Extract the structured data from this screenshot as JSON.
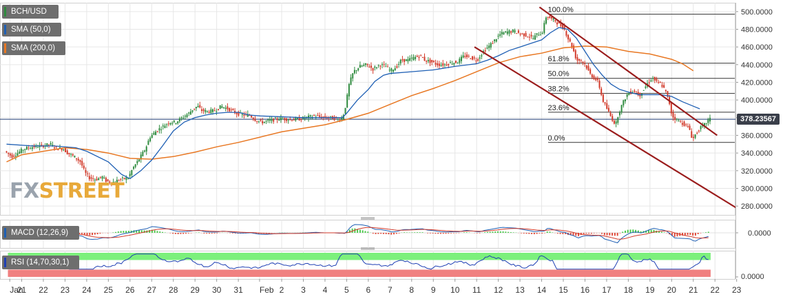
{
  "legend": {
    "pair": "BCH/USD",
    "sma50": "SMA (50,0)",
    "sma200": "SMA (200,0)"
  },
  "watermark": {
    "part1": "FX",
    "part2": "STREET"
  },
  "colors": {
    "candle_up": "#2e8b3e",
    "candle_down": "#d23a2a",
    "sma50": "#1e5fb4",
    "sma200": "#e87722",
    "channel": "#9b1d1d",
    "macd_line": "#1e5fb4",
    "macd_signal": "#d23a2a",
    "rsi_line": "#1e3fb4",
    "rsi_overbought": "#7cf07c",
    "rsi_oversold": "#f08080",
    "price_tag_bg": "#3a3f4a",
    "grid": "#e6e6e6"
  },
  "chart_data": {
    "type": "candlestick",
    "pair": "BCH/USD",
    "price_axis": {
      "ylim": [
        270,
        510
      ],
      "ticks": [
        500,
        480,
        460,
        440,
        420,
        400,
        380,
        360,
        340,
        320,
        300,
        280
      ],
      "tick_labels": [
        "500.0000",
        "480.0000",
        "460.0000",
        "440.0000",
        "420.0000",
        "400.0000",
        "380.0000",
        "360.0000",
        "340.0000",
        "320.0000",
        "300.0000",
        "280.0000"
      ]
    },
    "time_axis": {
      "labels": [
        "Jan",
        "21",
        "22",
        "23",
        "24",
        "25",
        "26",
        "27",
        "28",
        "29",
        "30",
        "31",
        "Feb",
        "2",
        "3",
        "4",
        "5",
        "6",
        "7",
        "8",
        "9",
        "10",
        "11",
        "12",
        "13",
        "14",
        "15",
        "16",
        "17",
        "18",
        "19",
        "20",
        "21",
        "22",
        "23"
      ],
      "day_index": [
        -0.55,
        0,
        1,
        2,
        3,
        4,
        5,
        6,
        7,
        8,
        9,
        10,
        10.98,
        12,
        13,
        14,
        15,
        16,
        17,
        18,
        19,
        20,
        21,
        22,
        23,
        24,
        25,
        26,
        27,
        28,
        29,
        30,
        31,
        32,
        33
      ]
    },
    "current_price": "378.23567",
    "current_price_value": 378.23567,
    "fibonacci": {
      "high": 497,
      "low": 352,
      "levels": [
        {
          "label": "100.0%",
          "price": 497
        },
        {
          "label": "61.8%",
          "price": 441.6
        },
        {
          "label": "50.0%",
          "price": 424.5
        },
        {
          "label": "38.2%",
          "price": 407.4
        },
        {
          "label": "23.6%",
          "price": 386.2
        },
        {
          "label": "0.0%",
          "price": 352
        }
      ]
    },
    "channel": {
      "upper": [
        [
          23.9,
          505
        ],
        [
          32.1,
          360
        ]
      ],
      "lower": [
        [
          20.9,
          460
        ],
        [
          33.05,
          277
        ]
      ]
    },
    "price_path": [
      [
        -0.7,
        342
      ],
      [
        -0.35,
        336
      ],
      [
        0.2,
        345
      ],
      [
        0.6,
        347
      ],
      [
        1.0,
        348
      ],
      [
        1.4,
        350
      ],
      [
        1.7,
        345
      ],
      [
        2.0,
        345
      ],
      [
        2.2,
        340
      ],
      [
        2.5,
        336
      ],
      [
        2.8,
        330
      ],
      [
        3.0,
        318
      ],
      [
        3.2,
        312
      ],
      [
        3.5,
        310
      ],
      [
        3.8,
        313
      ],
      [
        4.0,
        308
      ],
      [
        4.3,
        307
      ],
      [
        4.6,
        310
      ],
      [
        5.0,
        312
      ],
      [
        5.2,
        322
      ],
      [
        5.5,
        333
      ],
      [
        5.8,
        345
      ],
      [
        6.0,
        358
      ],
      [
        6.3,
        365
      ],
      [
        6.6,
        370
      ],
      [
        6.9,
        375
      ],
      [
        7.2,
        375
      ],
      [
        7.5,
        380
      ],
      [
        7.8,
        385
      ],
      [
        8.0,
        390
      ],
      [
        8.2,
        393
      ],
      [
        8.4,
        388
      ],
      [
        8.7,
        387
      ],
      [
        9.0,
        388
      ],
      [
        9.3,
        393
      ],
      [
        9.6,
        390
      ],
      [
        10.0,
        385
      ],
      [
        10.3,
        383
      ],
      [
        10.6,
        383
      ],
      [
        10.9,
        377
      ],
      [
        11.2,
        375
      ],
      [
        11.6,
        377
      ],
      [
        12.0,
        379
      ],
      [
        12.4,
        378
      ],
      [
        12.8,
        378
      ],
      [
        13.2,
        380
      ],
      [
        13.6,
        382
      ],
      [
        14.0,
        380
      ],
      [
        14.4,
        380
      ],
      [
        14.7,
        378
      ],
      [
        14.9,
        380
      ],
      [
        15.05,
        395
      ],
      [
        15.2,
        418
      ],
      [
        15.4,
        432
      ],
      [
        15.7,
        438
      ],
      [
        16.0,
        440
      ],
      [
        16.3,
        435
      ],
      [
        16.6,
        440
      ],
      [
        16.9,
        438
      ],
      [
        17.1,
        433
      ],
      [
        17.4,
        438
      ],
      [
        17.6,
        445
      ],
      [
        17.9,
        445
      ],
      [
        18.2,
        448
      ],
      [
        18.5,
        450
      ],
      [
        18.7,
        445
      ],
      [
        19.0,
        443
      ],
      [
        19.3,
        440
      ],
      [
        19.6,
        440
      ],
      [
        19.9,
        442
      ],
      [
        20.2,
        443
      ],
      [
        20.5,
        450
      ],
      [
        20.8,
        448
      ],
      [
        21.1,
        445
      ],
      [
        21.4,
        455
      ],
      [
        21.7,
        462
      ],
      [
        22.0,
        470
      ],
      [
        22.2,
        475
      ],
      [
        22.5,
        477
      ],
      [
        22.8,
        478
      ],
      [
        23.1,
        475
      ],
      [
        23.4,
        473
      ],
      [
        23.7,
        470
      ],
      [
        23.9,
        475
      ],
      [
        24.1,
        475
      ],
      [
        24.3,
        495
      ],
      [
        24.5,
        492
      ],
      [
        24.7,
        490
      ],
      [
        24.9,
        485
      ],
      [
        25.1,
        482
      ],
      [
        25.3,
        470
      ],
      [
        25.5,
        460
      ],
      [
        25.7,
        445
      ],
      [
        25.9,
        445
      ],
      [
        26.1,
        440
      ],
      [
        26.3,
        430
      ],
      [
        26.5,
        425
      ],
      [
        26.7,
        420
      ],
      [
        26.9,
        400
      ],
      [
        27.1,
        390
      ],
      [
        27.3,
        380
      ],
      [
        27.5,
        372
      ],
      [
        27.6,
        382
      ],
      [
        27.8,
        395
      ],
      [
        28.0,
        405
      ],
      [
        28.2,
        410
      ],
      [
        28.4,
        410
      ],
      [
        28.6,
        405
      ],
      [
        28.8,
        412
      ],
      [
        29.0,
        420
      ],
      [
        29.2,
        425
      ],
      [
        29.4,
        420
      ],
      [
        29.6,
        418
      ],
      [
        29.8,
        410
      ],
      [
        30.0,
        395
      ],
      [
        30.1,
        382
      ],
      [
        30.3,
        378
      ],
      [
        30.5,
        375
      ],
      [
        30.7,
        372
      ],
      [
        30.9,
        368
      ],
      [
        31.05,
        355
      ],
      [
        31.2,
        362
      ],
      [
        31.4,
        368
      ],
      [
        31.6,
        372
      ],
      [
        31.8,
        378
      ]
    ],
    "sma50_path": [
      [
        -0.7,
        350
      ],
      [
        0.5,
        348
      ],
      [
        1.5,
        348
      ],
      [
        2.5,
        346
      ],
      [
        3.0,
        342
      ],
      [
        4.0,
        330
      ],
      [
        4.6,
        316
      ],
      [
        5.0,
        311
      ],
      [
        5.5,
        320
      ],
      [
        6.0,
        332
      ],
      [
        6.5,
        348
      ],
      [
        7.0,
        365
      ],
      [
        7.5,
        375
      ],
      [
        8.0,
        380
      ],
      [
        8.5,
        383
      ],
      [
        9.0,
        385
      ],
      [
        9.5,
        386
      ],
      [
        10.0,
        386
      ],
      [
        10.5,
        383
      ],
      [
        11.0,
        382
      ],
      [
        12.0,
        381
      ],
      [
        13.0,
        380
      ],
      [
        14.0,
        380
      ],
      [
        14.8,
        380
      ],
      [
        15.0,
        385
      ],
      [
        15.5,
        400
      ],
      [
        16.0,
        412
      ],
      [
        16.3,
        421
      ],
      [
        16.7,
        428
      ],
      [
        17.0,
        430
      ],
      [
        18.0,
        432
      ],
      [
        19.0,
        434
      ],
      [
        20.0,
        438
      ],
      [
        21.0,
        441
      ],
      [
        21.5,
        445
      ],
      [
        22.0,
        450
      ],
      [
        22.5,
        456
      ],
      [
        23.0,
        460
      ],
      [
        23.5,
        464
      ],
      [
        24.0,
        468
      ],
      [
        24.4,
        476
      ],
      [
        24.8,
        482
      ],
      [
        25.2,
        480
      ],
      [
        25.6,
        470
      ],
      [
        26.0,
        455
      ],
      [
        26.4,
        440
      ],
      [
        26.8,
        428
      ],
      [
        27.2,
        418
      ],
      [
        27.6,
        412
      ],
      [
        28.0,
        409
      ],
      [
        28.5,
        406
      ],
      [
        29.0,
        406
      ],
      [
        29.5,
        406
      ],
      [
        30.0,
        404
      ],
      [
        30.5,
        398
      ],
      [
        31.0,
        393
      ],
      [
        31.3,
        390
      ]
    ],
    "sma200_path": [
      [
        -0.7,
        330
      ],
      [
        0.0,
        338
      ],
      [
        1.0,
        342
      ],
      [
        2.0,
        346
      ],
      [
        3.0,
        344
      ],
      [
        4.0,
        340
      ],
      [
        5.0,
        334
      ],
      [
        6.0,
        333
      ],
      [
        7.0,
        336
      ],
      [
        8.0,
        341
      ],
      [
        9.0,
        347
      ],
      [
        10.0,
        352
      ],
      [
        11.0,
        358
      ],
      [
        12.0,
        364
      ],
      [
        13.0,
        368
      ],
      [
        14.0,
        372
      ],
      [
        15.0,
        378
      ],
      [
        16.0,
        385
      ],
      [
        17.0,
        395
      ],
      [
        18.0,
        405
      ],
      [
        19.0,
        413
      ],
      [
        20.0,
        422
      ],
      [
        21.0,
        432
      ],
      [
        22.0,
        442
      ],
      [
        23.0,
        449
      ],
      [
        24.0,
        453
      ],
      [
        25.0,
        459
      ],
      [
        26.0,
        461
      ],
      [
        27.0,
        460
      ],
      [
        28.0,
        455
      ],
      [
        29.0,
        452
      ],
      [
        30.0,
        446
      ],
      [
        30.5,
        441
      ],
      [
        31.0,
        433
      ]
    ],
    "macd": {
      "label": "MACD (12,26,9)",
      "ylim": [
        -1,
        1
      ],
      "ticks": [
        0
      ],
      "tick_labels": [
        "0.0000"
      ]
    },
    "rsi": {
      "label": "RSI (14,70,30,1)",
      "ylim": [
        0,
        100
      ],
      "overbought": 70,
      "oversold": 30,
      "ticks": [
        0
      ],
      "tick_labels": [
        "0.0000"
      ]
    }
  }
}
